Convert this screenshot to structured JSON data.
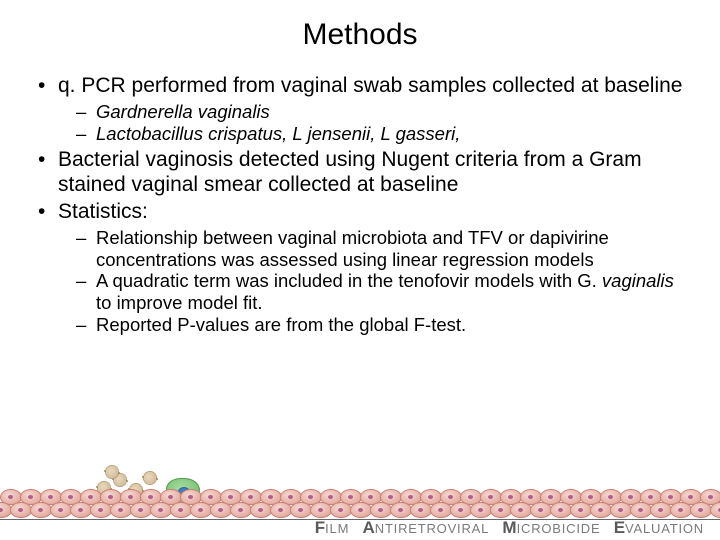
{
  "title": "Methods",
  "bullets": {
    "b1": "q. PCR performed from vaginal swab samples collected at baseline",
    "b1_subs": {
      "s1": "Gardnerella vaginalis",
      "s2": "Lactobacillus crispatus, L jensenii, L gasseri,"
    },
    "b2": "Bacterial vaginosis detected using Nugent criteria from a Gram stained vaginal smear collected at baseline",
    "b3": "Statistics:",
    "b3_subs": {
      "s1": "Relationship between vaginal microbiota and TFV or dapivirine concentrations was assessed using linear regression models",
      "s2_pre": "A quadratic term was included in the tenofovir models with G. ",
      "s2_it": "vaginalis",
      "s2_post": " to improve model fit.",
      "s3": "Reported P-values are from the global F-test."
    }
  },
  "footer": {
    "logo_words": {
      "f_cap": "F",
      "f_rest": "ILM",
      "a_cap": "A",
      "a_rest": "NTIRETROVIRAL",
      "m_cap": "M",
      "m_rest": "ICROBICIDE",
      "e_cap": "E",
      "e_rest": "VALUATION"
    },
    "colors": {
      "cell_fill": "#e9b7ad",
      "cell_edge": "#c97f72",
      "nucleus": "#b05f8a",
      "virion_fill": "#cbb48c",
      "blob_fill": "#6fb867",
      "rule": "#666666",
      "logo_gray": "#7a7a7a"
    }
  }
}
